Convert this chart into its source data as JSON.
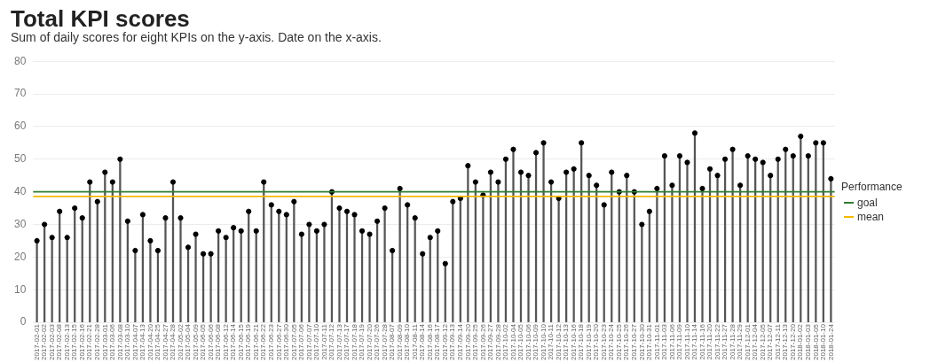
{
  "chart_data": {
    "type": "lollipop",
    "title": "Total KPI scores",
    "subtitle": "Sum of daily scores for eight KPIs on the y-axis. Date on the x-axis.",
    "categories": [
      "2017-02-01",
      "2017-02-02",
      "2017-02-03",
      "2017-02-08",
      "2017-02-13",
      "2017-02-15",
      "2017-02-16",
      "2017-02-21",
      "2017-02-28",
      "2017-03-01",
      "2017-03-06",
      "2017-03-08",
      "2017-03-10",
      "2017-04-07",
      "2017-04-13",
      "2017-04-20",
      "2017-04-25",
      "2017-04-27",
      "2017-04-28",
      "2017-05-02",
      "2017-05-04",
      "2017-05-09",
      "2017-06-05",
      "2017-06-06",
      "2017-06-08",
      "2017-06-12",
      "2017-06-14",
      "2017-06-15",
      "2017-06-19",
      "2017-06-21",
      "2017-06-22",
      "2017-06-23",
      "2017-06-27",
      "2017-06-30",
      "2017-07-05",
      "2017-07-06",
      "2017-07-07",
      "2017-07-10",
      "2017-07-11",
      "2017-07-12",
      "2017-07-13",
      "2017-07-17",
      "2017-07-18",
      "2017-07-19",
      "2017-07-20",
      "2017-07-26",
      "2017-07-28",
      "2017-08-07",
      "2017-08-09",
      "2017-08-10",
      "2017-08-11",
      "2017-08-14",
      "2017-08-16",
      "2017-08-17",
      "2017-09-12",
      "2017-09-13",
      "2017-09-14",
      "2017-09-20",
      "2017-09-25",
      "2017-09-26",
      "2017-09-27",
      "2017-09-28",
      "2017-10-02",
      "2017-10-04",
      "2017-10-05",
      "2017-10-06",
      "2017-10-09",
      "2017-10-10",
      "2017-10-11",
      "2017-10-12",
      "2017-10-13",
      "2017-10-16",
      "2017-10-18",
      "2017-10-19",
      "2017-10-20",
      "2017-10-23",
      "2017-10-24",
      "2017-10-25",
      "2017-10-26",
      "2017-10-27",
      "2017-10-30",
      "2017-10-31",
      "2017-11-01",
      "2017-11-03",
      "2017-11-06",
      "2017-11-09",
      "2017-11-10",
      "2017-11-14",
      "2017-11-16",
      "2017-11-20",
      "2017-11-22",
      "2017-11-27",
      "2017-11-28",
      "2017-11-29",
      "2017-12-01",
      "2017-12-04",
      "2017-12-05",
      "2017-12-07",
      "2017-12-11",
      "2017-12-13",
      "2017-12-20",
      "2018-01-02",
      "2018-01-03",
      "2018-01-05",
      "2018-01-10",
      "2018-01-24"
    ],
    "values": [
      25,
      30,
      26,
      34,
      26,
      35,
      32,
      43,
      37,
      46,
      43,
      50,
      31,
      22,
      33,
      25,
      22,
      32,
      43,
      32,
      23,
      27,
      21,
      21,
      28,
      26,
      29,
      28,
      34,
      28,
      43,
      36,
      34,
      33,
      37,
      27,
      30,
      28,
      30,
      40,
      35,
      34,
      33,
      28,
      27,
      31,
      35,
      22,
      41,
      36,
      32,
      21,
      26,
      28,
      18,
      37,
      38,
      48,
      43,
      39,
      46,
      43,
      50,
      53,
      46,
      45,
      52,
      55,
      43,
      38,
      46,
      47,
      55,
      45,
      42,
      36,
      46,
      40,
      45,
      40,
      30,
      34,
      41,
      51,
      42,
      51,
      49,
      58,
      41,
      47,
      45,
      50,
      53,
      42,
      51,
      50,
      49,
      45,
      50,
      53,
      51,
      57,
      51,
      55,
      55,
      44
    ],
    "color": "#000000",
    "ylim": [
      0,
      80
    ],
    "yticks": [
      0,
      10,
      20,
      30,
      40,
      50,
      60,
      70,
      80
    ],
    "grid": "y",
    "marker": "circle",
    "ref_lines": [
      {
        "axis": "y",
        "value": 40,
        "label": "goal",
        "color": "#2e7d32"
      },
      {
        "axis": "y",
        "value": 38.6,
        "label": "mean",
        "color": "#f5b800"
      }
    ],
    "legend": "right",
    "legend_title": "Performance"
  }
}
